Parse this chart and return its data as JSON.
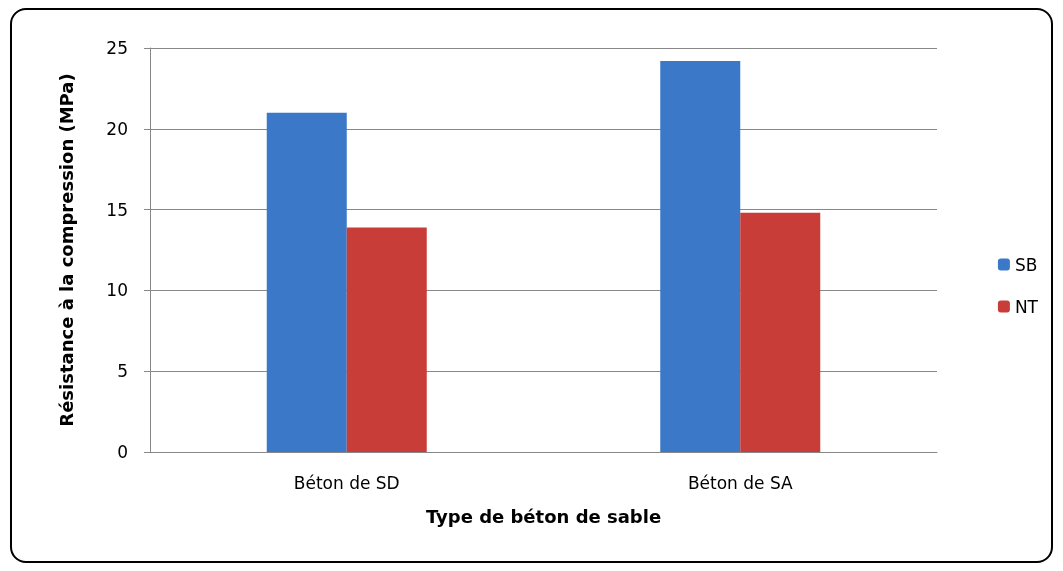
{
  "chart_data": {
    "type": "bar",
    "xlabel": "Type de béton de sable",
    "ylabel": "Résistance à la compression (MPa)",
    "categories": [
      "Béton de SD",
      "Béton de SA"
    ],
    "series": [
      {
        "name": "SB",
        "color": "#3b78c8",
        "values": [
          21,
          24.2
        ]
      },
      {
        "name": "NT",
        "color": "#c83d38",
        "values": [
          13.9,
          14.8
        ]
      }
    ],
    "ylim": [
      0,
      25
    ],
    "yticks": [
      0,
      5,
      10,
      15,
      20,
      25
    ],
    "grid": "y",
    "legend": "right"
  }
}
